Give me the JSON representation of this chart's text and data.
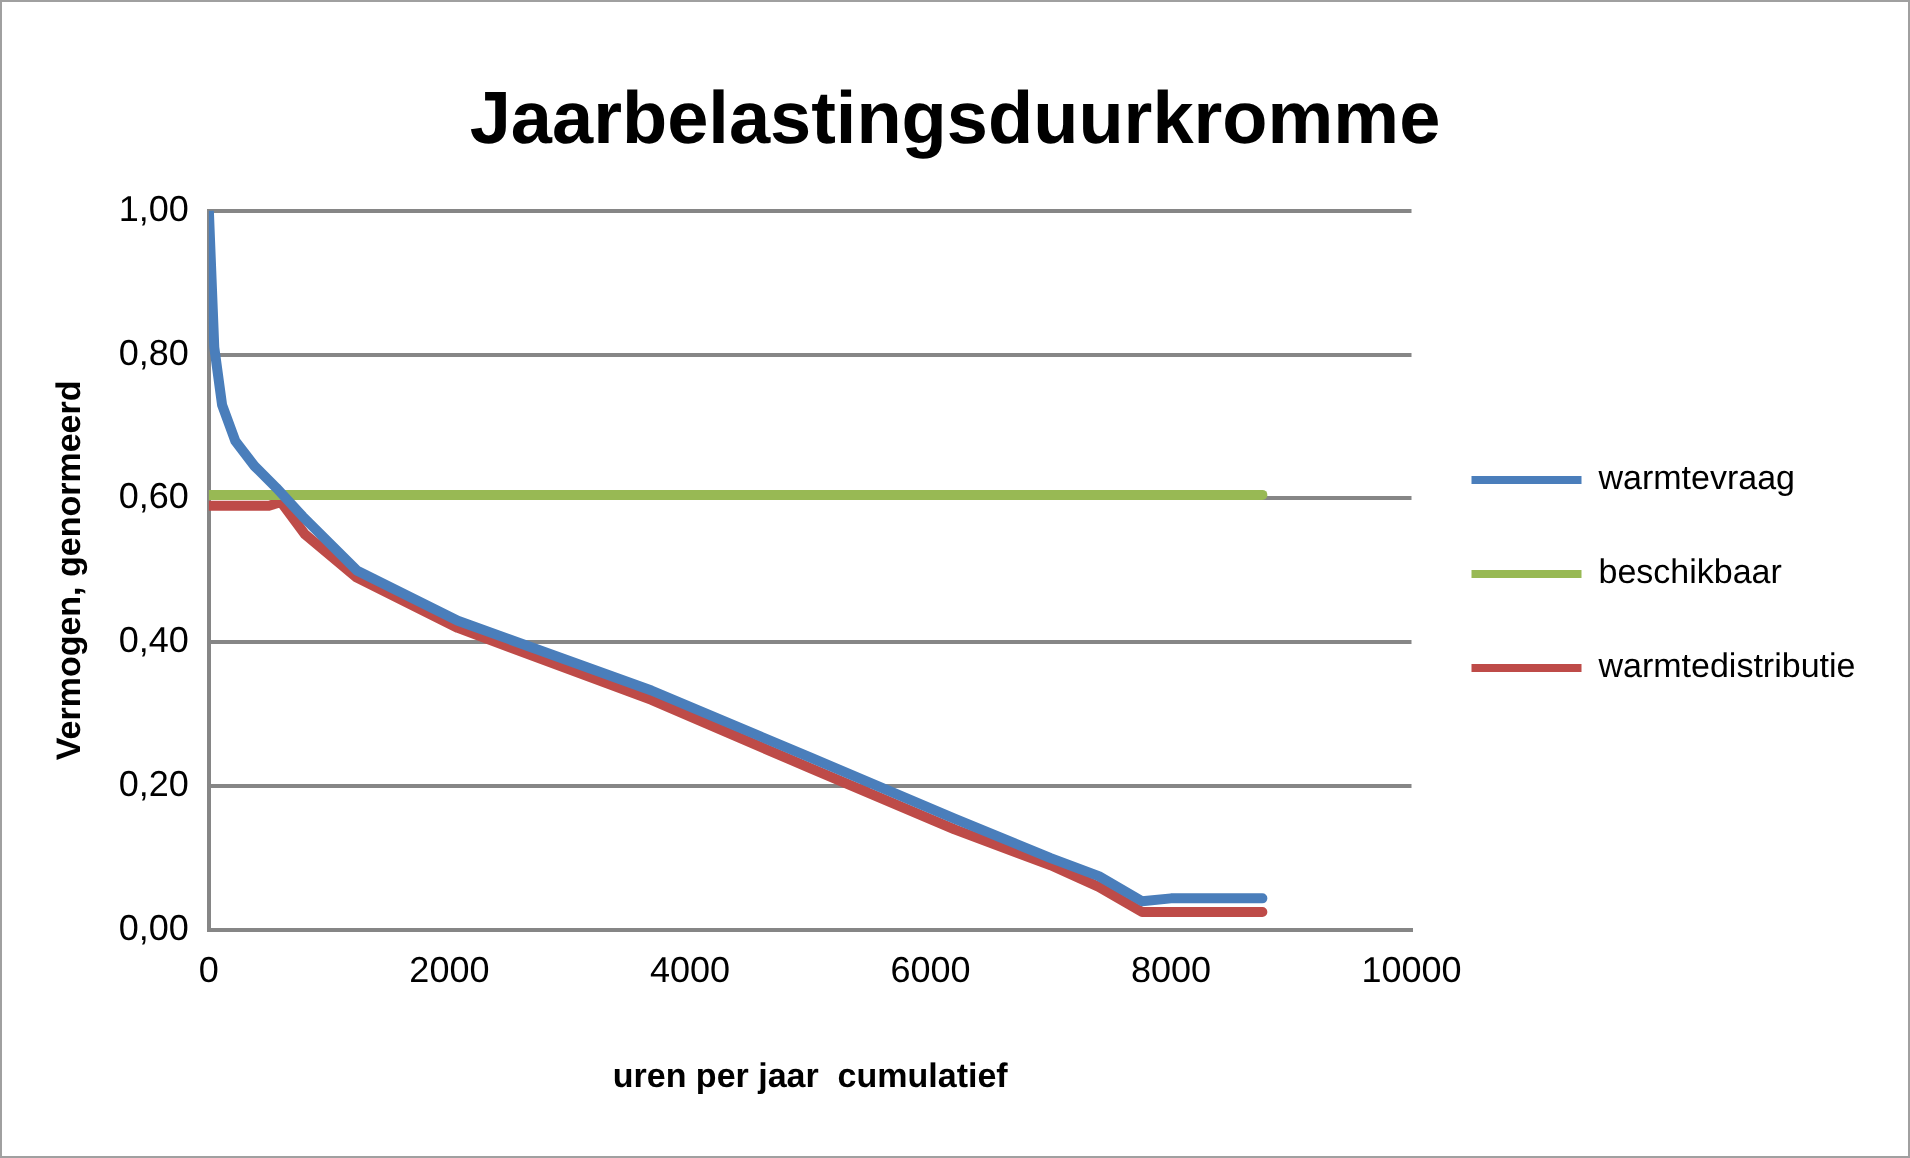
{
  "chart_data": {
    "type": "line",
    "title": "Jaarbelastingsduurkromme",
    "xlabel": "uren per jaar  cumulatief",
    "ylabel": "Vermogen, genormeerd",
    "xlim": [
      0,
      10000
    ],
    "xticks": [
      0,
      2000,
      4000,
      6000,
      8000,
      10000
    ],
    "ylim": [
      0,
      1
    ],
    "yticks": [
      {
        "value": 0,
        "label": "0,00"
      },
      {
        "value": 0.2,
        "label": "0,20"
      },
      {
        "value": 0.4,
        "label": "0,40"
      },
      {
        "value": 0.6,
        "label": "0,60"
      },
      {
        "value": 0.8,
        "label": "0,80"
      },
      {
        "value": 1,
        "label": "1,00"
      }
    ],
    "grid": "y",
    "legend": "right",
    "marker": "none",
    "line_style": "solid",
    "series": [
      {
        "name": "warmtevraag",
        "color": "#4a7ebb",
        "x": [
          0,
          45,
          110,
          220,
          380,
          560,
          780,
          1230,
          2070,
          3680,
          5000,
          6200,
          7000,
          7400,
          7760,
          8000,
          8760
        ],
        "values": [
          1.0,
          0.81,
          0.73,
          0.68,
          0.645,
          0.615,
          0.575,
          0.5,
          0.43,
          0.333,
          0.24,
          0.155,
          0.1,
          0.075,
          0.04,
          0.044,
          0.044
        ]
      },
      {
        "name": "beschikbaar",
        "color": "#98b954",
        "x": [
          0,
          8760
        ],
        "values": [
          0.605,
          0.605
        ]
      },
      {
        "name": "warmtedistributie",
        "color": "#be4b48",
        "x": [
          0,
          500,
          600,
          800,
          1230,
          2070,
          3680,
          5000,
          6200,
          7000,
          7400,
          7760,
          8760
        ],
        "values": [
          0.59,
          0.59,
          0.595,
          0.55,
          0.49,
          0.42,
          0.32,
          0.225,
          0.14,
          0.09,
          0.06,
          0.025,
          0.025
        ]
      }
    ]
  }
}
